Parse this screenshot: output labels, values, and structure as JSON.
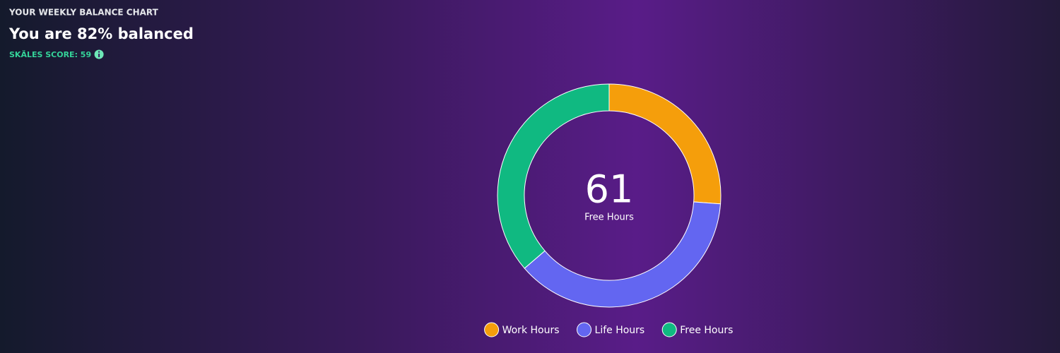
{
  "chart_data": {
    "type": "donut",
    "title": "YOUR WEEKLY BALANCE CHART",
    "subtitle": "You are 82% balanced",
    "score_label": "SKÄLES SCORE: 59",
    "categories": [
      "Work Hours",
      "Life Hours",
      "Free Hours"
    ],
    "values": [
      44,
      63,
      61
    ],
    "colors": [
      "#f59e0b",
      "#6366f1",
      "#10b981"
    ],
    "center_label": "Free Hours",
    "center_value_index": 2,
    "legend": "bottom"
  }
}
